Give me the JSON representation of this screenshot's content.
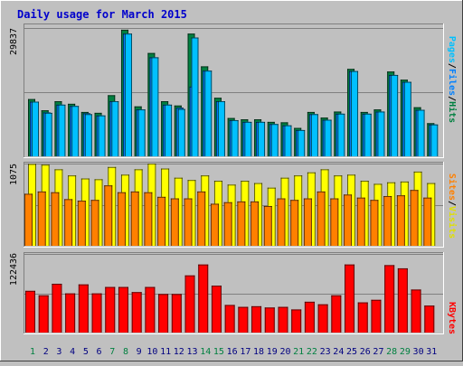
{
  "title": "Daily usage for March 2015",
  "colors": {
    "background": "#c0c0c0",
    "panel": "#c0c0c0",
    "title": "#0000cc",
    "hits": "#008040",
    "files": "#0080ff",
    "pages": "#00c0ff",
    "visits": "#ffff00",
    "sites": "#ff8000",
    "kbytes": "#ff0000",
    "weekend_day": "#008040",
    "weekday": "#000080"
  },
  "chart_data": [
    {
      "type": "bar",
      "title": "Daily usage for March 2015",
      "ylabel_parts": [
        "Pages",
        "/",
        "Files",
        "/",
        "Hits"
      ],
      "ytick_label": "29837",
      "ylim": [
        0,
        29837
      ],
      "grid": true,
      "categories": [
        "1",
        "2",
        "3",
        "4",
        "5",
        "6",
        "7",
        "8",
        "9",
        "10",
        "11",
        "12",
        "13",
        "14",
        "15",
        "16",
        "17",
        "18",
        "19",
        "20",
        "21",
        "22",
        "23",
        "24",
        "25",
        "26",
        "27",
        "28",
        "29",
        "30",
        "31"
      ],
      "series": [
        {
          "name": "Hits",
          "values": [
            13300,
            10700,
            12800,
            12200,
            10300,
            10100,
            14200,
            29400,
            11600,
            24000,
            12800,
            11800,
            28500,
            20900,
            13600,
            8900,
            8600,
            8600,
            8000,
            7900,
            6600,
            10300,
            9000,
            10400,
            20300,
            10300,
            10900,
            19700,
            17800,
            11400,
            7700
          ]
        },
        {
          "name": "Files",
          "values": [
            12700,
            10200,
            12000,
            11700,
            10000,
            9500,
            12800,
            28500,
            10900,
            23000,
            12000,
            11300,
            16200,
            19900,
            12800,
            8400,
            8000,
            8000,
            7500,
            7200,
            6100,
            9800,
            8500,
            9900,
            19800,
            9900,
            10400,
            18900,
            17300,
            10800,
            7400
          ]
        },
        {
          "name": "Pages",
          "values": [
            12700,
            10100,
            12000,
            11700,
            9800,
            9500,
            12800,
            28500,
            10900,
            23000,
            12000,
            11000,
            27600,
            19900,
            12800,
            8400,
            8000,
            8000,
            7500,
            7200,
            6100,
            9800,
            8500,
            9900,
            19800,
            9900,
            10400,
            18900,
            17300,
            10800,
            7400
          ]
        }
      ]
    },
    {
      "type": "bar",
      "ylabel_parts": [
        "Sites",
        "/",
        "Visits"
      ],
      "ytick_label": "1075",
      "ylim": [
        0,
        1075
      ],
      "grid": true,
      "categories": [
        "1",
        "2",
        "3",
        "4",
        "5",
        "6",
        "7",
        "8",
        "9",
        "10",
        "11",
        "12",
        "13",
        "14",
        "15",
        "16",
        "17",
        "18",
        "19",
        "20",
        "21",
        "22",
        "23",
        "24",
        "25",
        "26",
        "27",
        "28",
        "29",
        "30",
        "31"
      ],
      "series": [
        {
          "name": "Visits",
          "values": [
            1070,
            1060,
            1000,
            920,
            880,
            870,
            1030,
            930,
            1000,
            1075,
            1010,
            890,
            860,
            920,
            850,
            800,
            850,
            820,
            760,
            890,
            920,
            960,
            1000,
            920,
            930,
            850,
            810,
            830,
            840,
            970,
            820
          ]
        },
        {
          "name": "Sites",
          "values": [
            680,
            710,
            700,
            610,
            590,
            600,
            790,
            700,
            710,
            700,
            640,
            620,
            620,
            710,
            550,
            570,
            580,
            580,
            520,
            620,
            600,
            620,
            710,
            620,
            670,
            630,
            600,
            650,
            660,
            730,
            630
          ]
        }
      ]
    },
    {
      "type": "bar",
      "ylabel_parts": [
        "KBytes"
      ],
      "ytick_label": "122436",
      "ylim": [
        0,
        122436
      ],
      "grid": true,
      "categories": [
        "1",
        "2",
        "3",
        "4",
        "5",
        "6",
        "7",
        "8",
        "9",
        "10",
        "11",
        "12",
        "13",
        "14",
        "15",
        "16",
        "17",
        "18",
        "19",
        "20",
        "21",
        "22",
        "23",
        "24",
        "25",
        "26",
        "27",
        "28",
        "29",
        "30",
        "31"
      ],
      "series": [
        {
          "name": "KBytes",
          "values": [
            65000,
            58000,
            76000,
            61000,
            75000,
            61000,
            71000,
            71000,
            63000,
            71000,
            60000,
            60000,
            89000,
            106000,
            73000,
            43000,
            40000,
            41000,
            39000,
            40000,
            36000,
            48000,
            44000,
            58000,
            106000,
            47000,
            51000,
            105000,
            100000,
            67000,
            42000
          ]
        }
      ]
    }
  ],
  "day_labels": [
    "1",
    "2",
    "3",
    "4",
    "5",
    "6",
    "7",
    "8",
    "9",
    "10",
    "11",
    "12",
    "13",
    "14",
    "15",
    "16",
    "17",
    "18",
    "19",
    "20",
    "21",
    "22",
    "23",
    "24",
    "25",
    "26",
    "27",
    "28",
    "29",
    "30",
    "31"
  ],
  "weekend_days": [
    1,
    7,
    8,
    14,
    15,
    21,
    22,
    28,
    29
  ]
}
